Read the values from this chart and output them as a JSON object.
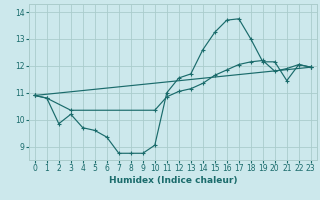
{
  "xlabel": "Humidex (Indice chaleur)",
  "bg_color": "#cce8ec",
  "grid_color": "#aacccc",
  "line_color": "#1a6b6b",
  "xlim": [
    -0.5,
    23.5
  ],
  "ylim": [
    8.5,
    14.3
  ],
  "xticks": [
    0,
    1,
    2,
    3,
    4,
    5,
    6,
    7,
    8,
    9,
    10,
    11,
    12,
    13,
    14,
    15,
    16,
    17,
    18,
    19,
    20,
    21,
    22,
    23
  ],
  "yticks": [
    9,
    10,
    11,
    12,
    13,
    14
  ],
  "series": [
    {
      "x": [
        0,
        1,
        2,
        3,
        4,
        5,
        6,
        7,
        8,
        9,
        10,
        11,
        12,
        13,
        14,
        15,
        16,
        17,
        18,
        19,
        20,
        21,
        22,
        23
      ],
      "y": [
        10.9,
        10.8,
        9.85,
        10.2,
        9.7,
        9.6,
        9.35,
        8.75,
        8.75,
        8.75,
        9.05,
        11.0,
        11.55,
        11.7,
        12.6,
        13.25,
        13.7,
        13.75,
        13.0,
        12.15,
        12.15,
        11.45,
        12.05,
        11.95
      ]
    },
    {
      "x": [
        0,
        1,
        3,
        10,
        11,
        12,
        13,
        14,
        15,
        16,
        17,
        18,
        19,
        20,
        21,
        22,
        23
      ],
      "y": [
        10.9,
        10.8,
        10.35,
        10.35,
        10.85,
        11.05,
        11.15,
        11.35,
        11.65,
        11.85,
        12.05,
        12.15,
        12.2,
        11.8,
        11.9,
        12.05,
        11.95
      ]
    },
    {
      "x": [
        0,
        23
      ],
      "y": [
        10.9,
        11.95
      ]
    }
  ]
}
